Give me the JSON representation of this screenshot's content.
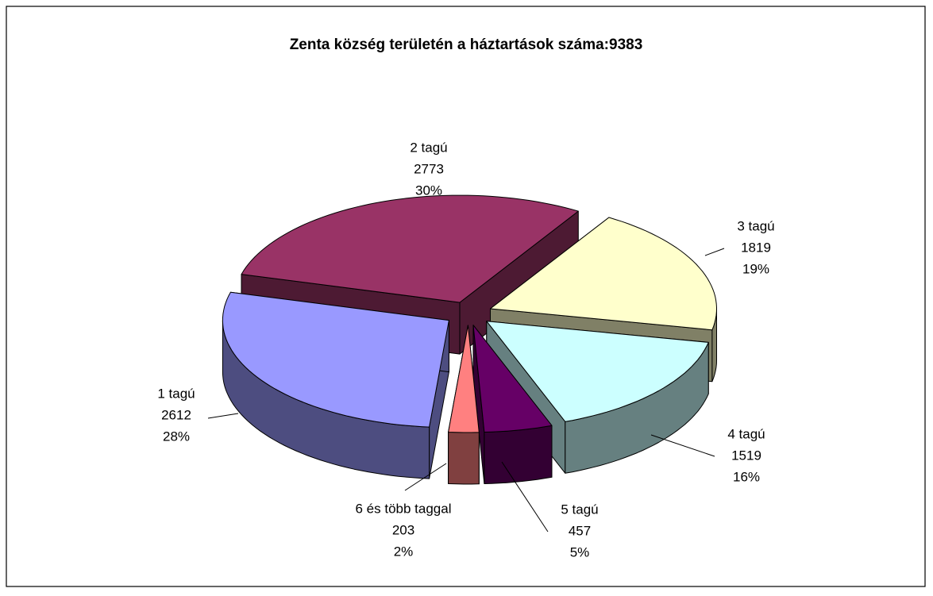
{
  "chart_data": {
    "type": "pie",
    "title": "Zenta község területén a háztartások száma:9383",
    "categories": [
      "1 tagú",
      "2 tagú",
      "3 tagú",
      "4 tagú",
      "5 tagú",
      "6 és több taggal"
    ],
    "values": [
      2612,
      2773,
      1819,
      1519,
      457,
      203
    ],
    "percent_labels": [
      "28%",
      "30%",
      "19%",
      "16%",
      "5%",
      "2%"
    ],
    "colors": [
      "#9999ff",
      "#993366",
      "#ffffcc",
      "#ccffff",
      "#660066",
      "#ff8080"
    ]
  }
}
